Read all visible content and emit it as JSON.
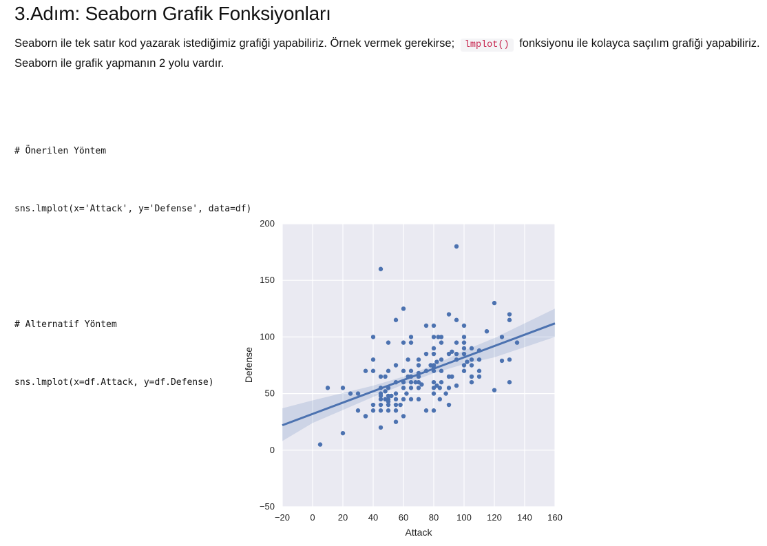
{
  "header": {
    "title": "3.Adım: Seaborn Grafik Fonksiyonları"
  },
  "intro": {
    "line1_before": "Seaborn ile tek satır kod yazarak istediğimiz grafiği yapabiliriz. Örnek vermek gerekirse;",
    "inline_code": "lmplot()",
    "line1_after": "fonksiyonu ile kolayca saçılım grafiği yapabiliriz.",
    "line2": "Seaborn ile grafik yapmanın 2 yolu vardır."
  },
  "code": {
    "comment1": "# Önerilen Yöntem",
    "line1": "sns.lmplot(x='Attack', y='Defense', data=df)",
    "comment2": "# Alternatif Yöntem",
    "line2": "sns.lmplot(x=df.Attack, y=df.Defense)"
  },
  "chart_data": {
    "type": "scatter",
    "title": "",
    "xlabel": "Attack",
    "ylabel": "Defense",
    "xlim": [
      -20,
      160
    ],
    "ylim": [
      -50,
      200
    ],
    "x_ticks": [
      -20,
      0,
      20,
      40,
      60,
      80,
      100,
      120,
      140,
      160
    ],
    "y_ticks": [
      -50,
      0,
      50,
      100,
      150,
      200
    ],
    "tick_labels_x": [
      "−20",
      "0",
      "20",
      "40",
      "60",
      "80",
      "100",
      "120",
      "140",
      "160"
    ],
    "tick_labels_y": [
      "−50",
      "0",
      "50",
      "100",
      "150",
      "200"
    ],
    "grid": true,
    "background": "#eaeaf2",
    "point_color": "#4c72b0",
    "regression": {
      "slope": 0.5,
      "intercept": 32
    },
    "confidence_band": {
      "x": [
        -20,
        0,
        40,
        60,
        80,
        100,
        120,
        160
      ],
      "lower": [
        8,
        24,
        47,
        58,
        68,
        76,
        82,
        100
      ],
      "upper": [
        37,
        44,
        57,
        65,
        75,
        88,
        99,
        125
      ]
    },
    "points": [
      [
        5,
        5
      ],
      [
        10,
        55
      ],
      [
        20,
        15
      ],
      [
        20,
        55
      ],
      [
        25,
        50
      ],
      [
        30,
        50
      ],
      [
        30,
        35
      ],
      [
        35,
        30
      ],
      [
        35,
        30
      ],
      [
        35,
        70
      ],
      [
        40,
        35
      ],
      [
        40,
        40
      ],
      [
        40,
        70
      ],
      [
        40,
        80
      ],
      [
        40,
        100
      ],
      [
        45,
        20
      ],
      [
        45,
        35
      ],
      [
        45,
        40
      ],
      [
        45,
        45
      ],
      [
        45,
        48
      ],
      [
        45,
        50
      ],
      [
        45,
        55
      ],
      [
        45,
        65
      ],
      [
        45,
        160
      ],
      [
        48,
        45
      ],
      [
        48,
        52
      ],
      [
        48,
        65
      ],
      [
        50,
        35
      ],
      [
        50,
        40
      ],
      [
        50,
        43
      ],
      [
        50,
        45
      ],
      [
        50,
        48
      ],
      [
        50,
        55
      ],
      [
        50,
        70
      ],
      [
        50,
        95
      ],
      [
        52,
        48
      ],
      [
        55,
        25
      ],
      [
        55,
        35
      ],
      [
        55,
        40
      ],
      [
        55,
        45
      ],
      [
        55,
        50
      ],
      [
        55,
        60
      ],
      [
        55,
        75
      ],
      [
        55,
        115
      ],
      [
        58,
        40
      ],
      [
        60,
        30
      ],
      [
        60,
        45
      ],
      [
        60,
        55
      ],
      [
        60,
        60
      ],
      [
        60,
        70
      ],
      [
        60,
        95
      ],
      [
        60,
        125
      ],
      [
        62,
        50
      ],
      [
        63,
        65
      ],
      [
        63,
        80
      ],
      [
        65,
        45
      ],
      [
        65,
        55
      ],
      [
        65,
        60
      ],
      [
        65,
        65
      ],
      [
        65,
        70
      ],
      [
        65,
        95
      ],
      [
        65,
        100
      ],
      [
        68,
        60
      ],
      [
        70,
        45
      ],
      [
        70,
        55
      ],
      [
        70,
        60
      ],
      [
        70,
        65
      ],
      [
        70,
        68
      ],
      [
        70,
        75
      ],
      [
        70,
        80
      ],
      [
        72,
        58
      ],
      [
        75,
        35
      ],
      [
        75,
        70
      ],
      [
        75,
        85
      ],
      [
        75,
        110
      ],
      [
        78,
        75
      ],
      [
        80,
        35
      ],
      [
        80,
        50
      ],
      [
        80,
        55
      ],
      [
        80,
        60
      ],
      [
        80,
        70
      ],
      [
        80,
        73
      ],
      [
        80,
        75
      ],
      [
        80,
        85
      ],
      [
        80,
        90
      ],
      [
        80,
        100
      ],
      [
        80,
        110
      ],
      [
        82,
        57
      ],
      [
        82,
        78
      ],
      [
        83,
        100
      ],
      [
        84,
        45
      ],
      [
        84,
        55
      ],
      [
        85,
        60
      ],
      [
        85,
        70
      ],
      [
        85,
        80
      ],
      [
        85,
        95
      ],
      [
        85,
        100
      ],
      [
        88,
        50
      ],
      [
        90,
        40
      ],
      [
        90,
        55
      ],
      [
        90,
        65
      ],
      [
        90,
        85
      ],
      [
        90,
        120
      ],
      [
        92,
        65
      ],
      [
        92,
        87
      ],
      [
        95,
        57
      ],
      [
        95,
        80
      ],
      [
        95,
        85
      ],
      [
        95,
        95
      ],
      [
        95,
        115
      ],
      [
        95,
        180
      ],
      [
        100,
        70
      ],
      [
        100,
        75
      ],
      [
        100,
        85
      ],
      [
        100,
        90
      ],
      [
        100,
        95
      ],
      [
        100,
        100
      ],
      [
        100,
        110
      ],
      [
        102,
        78
      ],
      [
        105,
        60
      ],
      [
        105,
        65
      ],
      [
        105,
        75
      ],
      [
        105,
        80
      ],
      [
        105,
        90
      ],
      [
        110,
        65
      ],
      [
        110,
        70
      ],
      [
        110,
        80
      ],
      [
        110,
        88
      ],
      [
        115,
        105
      ],
      [
        120,
        53
      ],
      [
        120,
        130
      ],
      [
        125,
        79
      ],
      [
        125,
        100
      ],
      [
        130,
        60
      ],
      [
        130,
        80
      ],
      [
        130,
        115
      ],
      [
        130,
        120
      ],
      [
        135,
        95
      ]
    ]
  }
}
